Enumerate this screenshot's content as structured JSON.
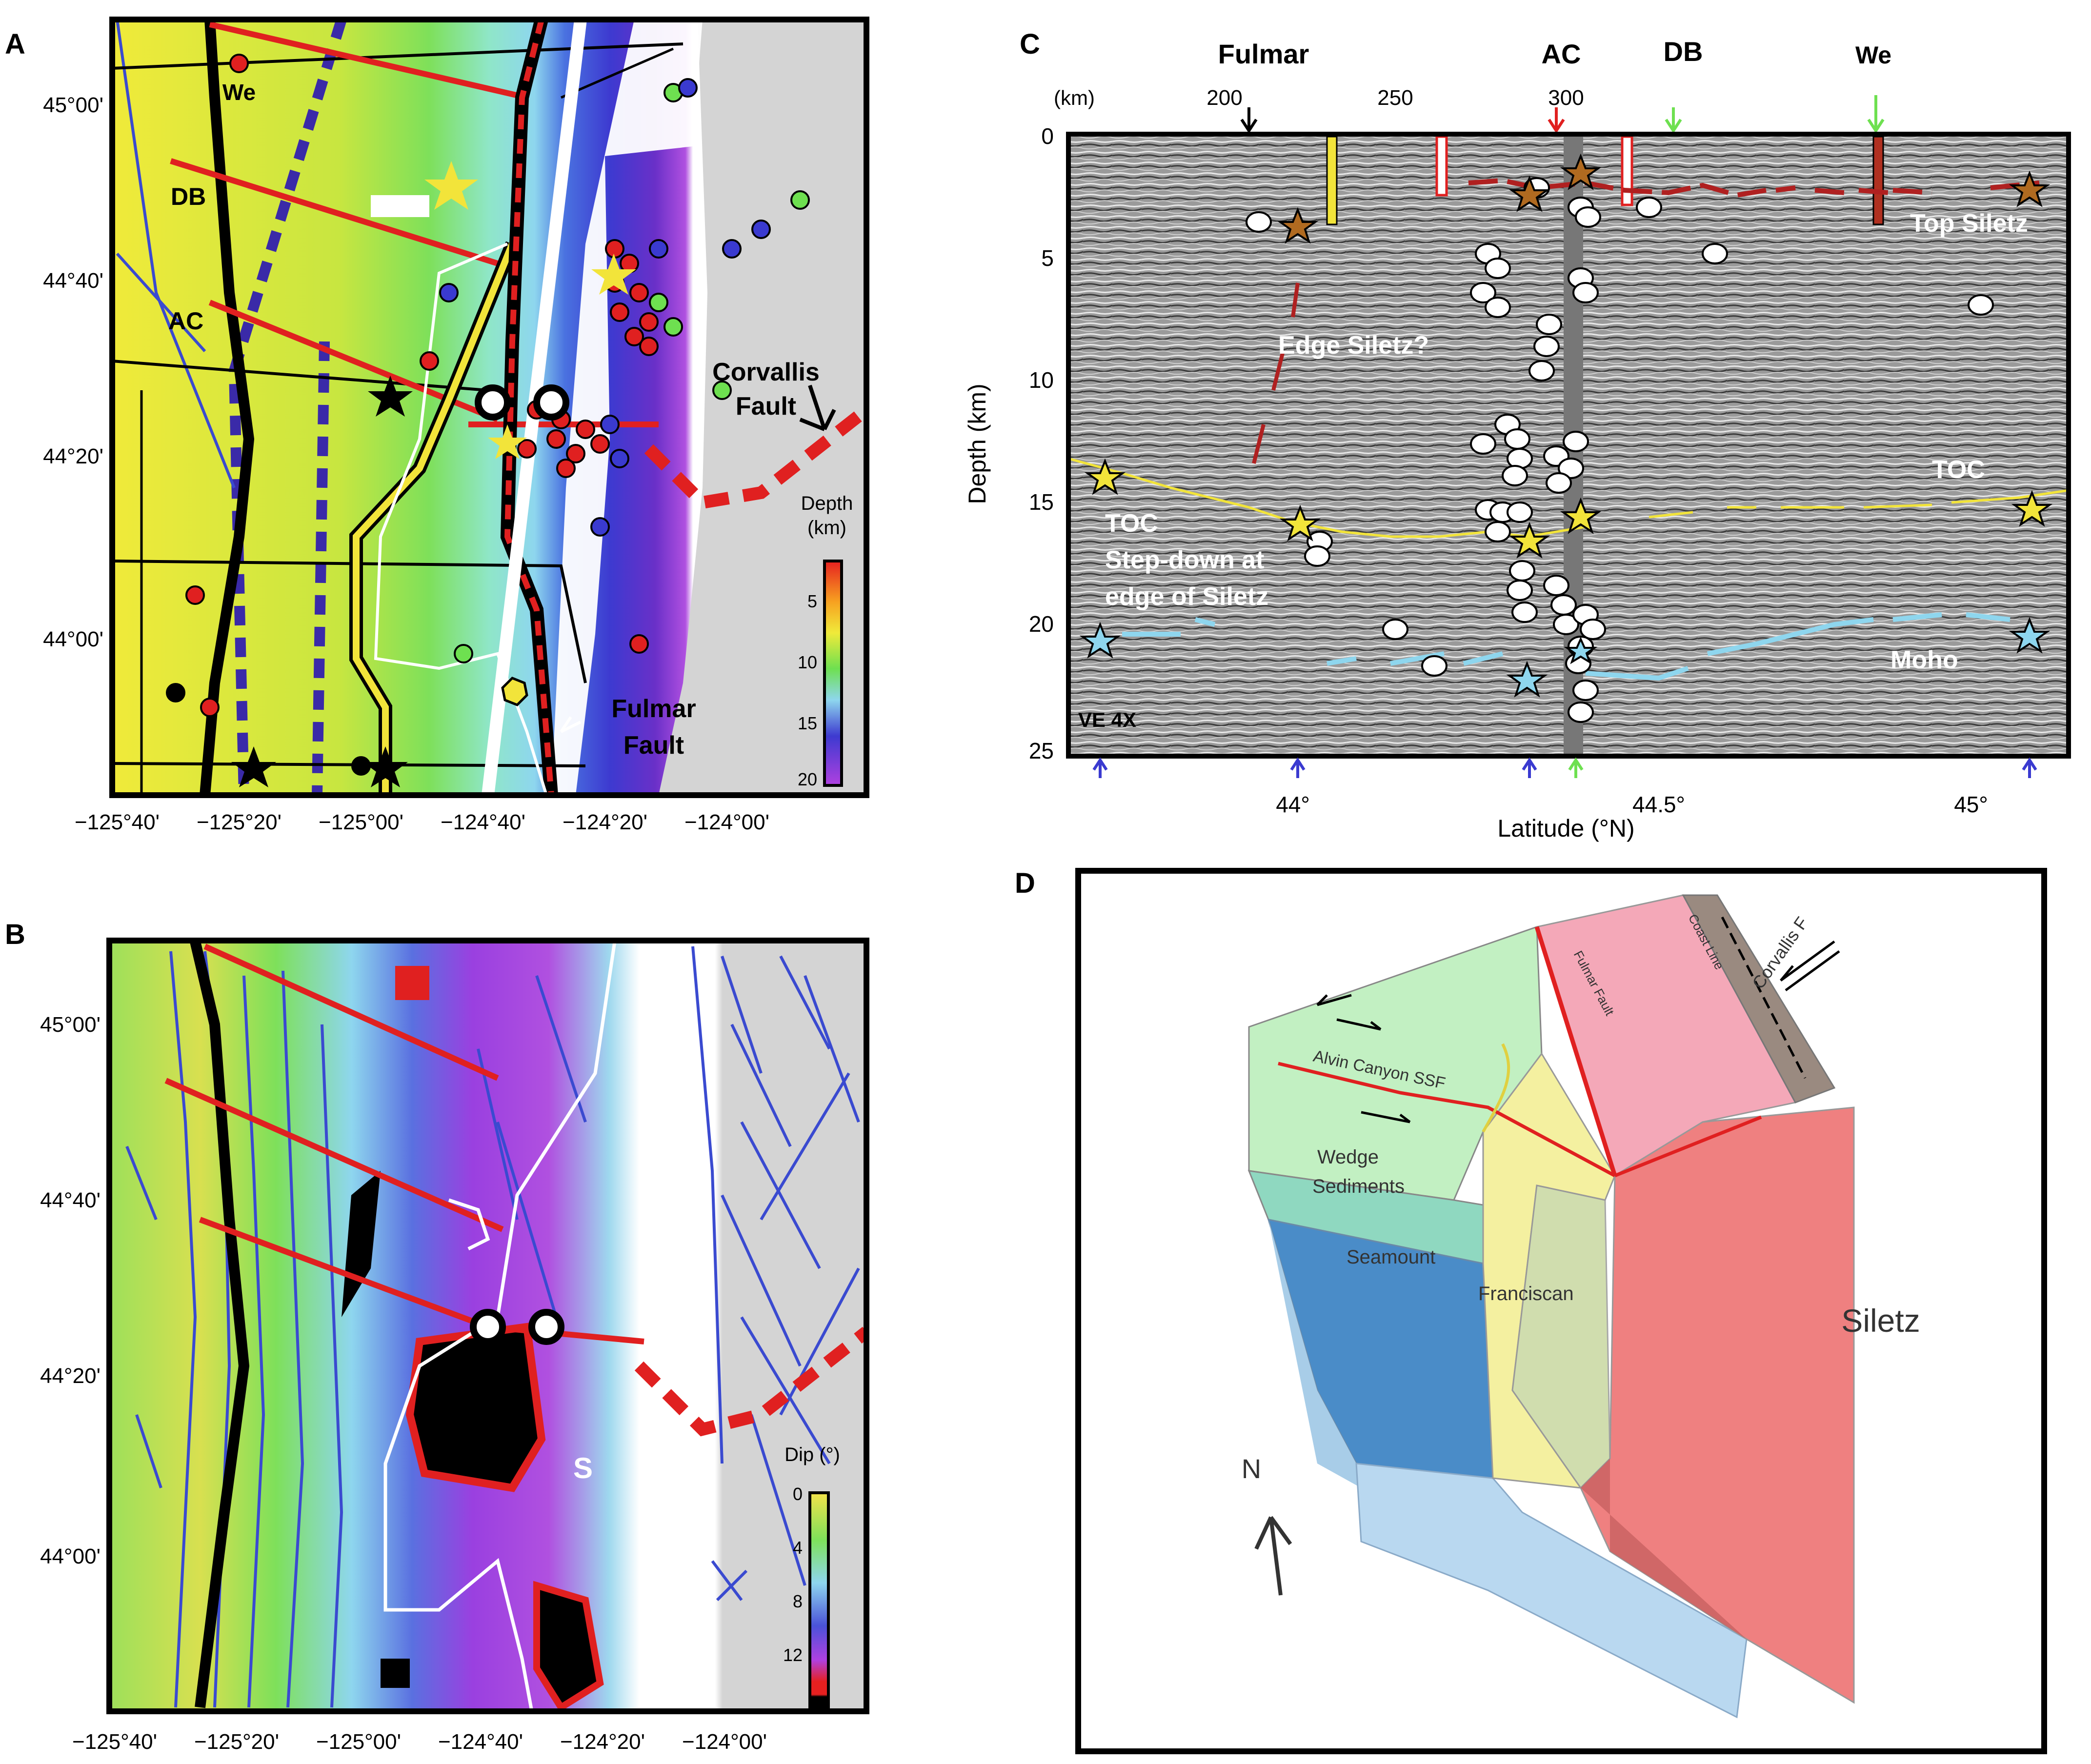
{
  "figure": {
    "panel_a": {
      "letter": "A",
      "lat_labels": [
        "45°00'",
        "44°40'",
        "44°20'",
        "44°00'"
      ],
      "lon_labels": [
        "−125°40'",
        "−125°20'",
        "−125°00'",
        "−124°40'",
        "−124°20'",
        "−124°00'"
      ],
      "line_labels": {
        "we": "We",
        "db": "DB",
        "ac": "AC"
      },
      "corvallis_label": "Corvallis",
      "corvallis_label2": "Fault",
      "fulmar_label": "Fulmar",
      "fulmar_label2": "Fault",
      "colorbar": {
        "title1": "Depth",
        "title2": "(km)",
        "ticks": [
          "5",
          "10",
          "15",
          "20"
        ]
      },
      "colors": {
        "trench": "#000000",
        "ss_fault": "#e02020",
        "coast": "#ffffff",
        "fulmar": "#f2e43a",
        "dashed_blue": "#3a2aa8"
      }
    },
    "panel_b": {
      "letter": "B",
      "lat_labels": [
        "45°00'",
        "44°40'",
        "44°20'",
        "44°00'"
      ],
      "lon_labels": [
        "−125°40'",
        "−125°20'",
        "−125°00'",
        "−124°40'",
        "−124°20'",
        "−124°00'"
      ],
      "s_label": "S",
      "colorbar": {
        "title": "Dip (°)",
        "ticks": [
          "0",
          "4",
          "8",
          "12"
        ]
      }
    },
    "panel_c": {
      "letter": "C",
      "km_unit": "(km)",
      "km_ticks": [
        "200",
        "250",
        "300"
      ],
      "line_names": {
        "fulmar": "Fulmar",
        "ac": "AC",
        "db": "DB",
        "we": "We"
      },
      "ylabel": "Depth (km)",
      "xlabel": "Latitude (°N)",
      "depth_ticks": [
        "0",
        "5",
        "10",
        "15",
        "20",
        "25"
      ],
      "lat_ticks": [
        "44°",
        "44.5°",
        "45°"
      ],
      "annotations": {
        "top_siletz": "Top Siletz",
        "edge_siletz": "Edge Siletz?",
        "toc": "TOC",
        "toc_step1": "TOC",
        "toc_step2": "Step-down at",
        "toc_step3": "edge of Siletz",
        "moho": "Moho",
        "ve": "VE 4X"
      }
    },
    "panel_d": {
      "letter": "D",
      "labels": {
        "siletz": "Siletz",
        "seamount": "Seamount",
        "franciscan": "Franciscan",
        "wedge1": "Wedge",
        "wedge2": "Sediments",
        "alvin": "Alvin Canyon SSF",
        "fulmar_fault": "Fulmar Fault",
        "coast_line": "Coast Line",
        "corvallis": "Corvallis F",
        "north": "N"
      }
    }
  }
}
